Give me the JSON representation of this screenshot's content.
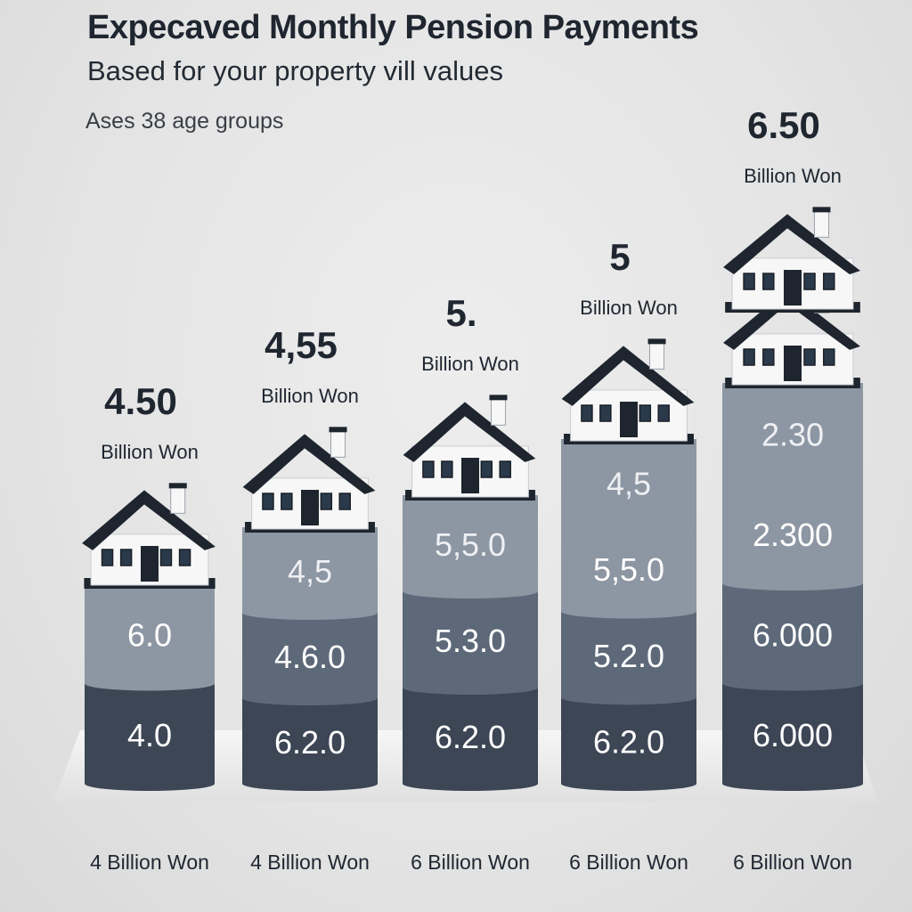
{
  "header": {
    "title": "Expecaved Monthly Pension Payments",
    "subtitle": "Based for your property vill values",
    "note": "Ases 38 age groups"
  },
  "colors": {
    "segment_dark": "#3c4655",
    "segment_mid": "#5d6979",
    "segment_light": "#8d96a3",
    "roof": "#1e252e",
    "house_wall": "#f7f7f7",
    "label_dark": "#1f2630",
    "label_on_dark": "#ffffff",
    "label_on_light": "#eef0f3"
  },
  "chart_data": {
    "type": "bar",
    "categories": [
      "4 Billion Won",
      "4 Billion Won",
      "6 Billion Won",
      "6 Billion Won",
      "6 Billion Won"
    ],
    "top_labels": [
      {
        "value": "4.50",
        "unit": "Billion Won"
      },
      {
        "value": "4,55",
        "unit": "Billion Won"
      },
      {
        "value": "5.",
        "unit": "Billion Won"
      },
      {
        "value": "5",
        "unit": "Billion Won"
      },
      {
        "value": "6.50",
        "unit": "Billion Won"
      }
    ],
    "relative_height": [
      0.5,
      0.64,
      0.72,
      0.86,
      1.0
    ],
    "houses": [
      1,
      1,
      1,
      1,
      2
    ],
    "segment_labels": [
      [
        "4.0",
        "6.0"
      ],
      [
        "6.2.0",
        "4.6.0",
        "4,5"
      ],
      [
        "6.2.0",
        "5.3.0",
        "5,5.0"
      ],
      [
        "6.2.0",
        "5.2.0",
        "5,5.0",
        "4,5"
      ],
      [
        "6.000",
        "6.000",
        "2.300",
        "2.30"
      ]
    ]
  }
}
